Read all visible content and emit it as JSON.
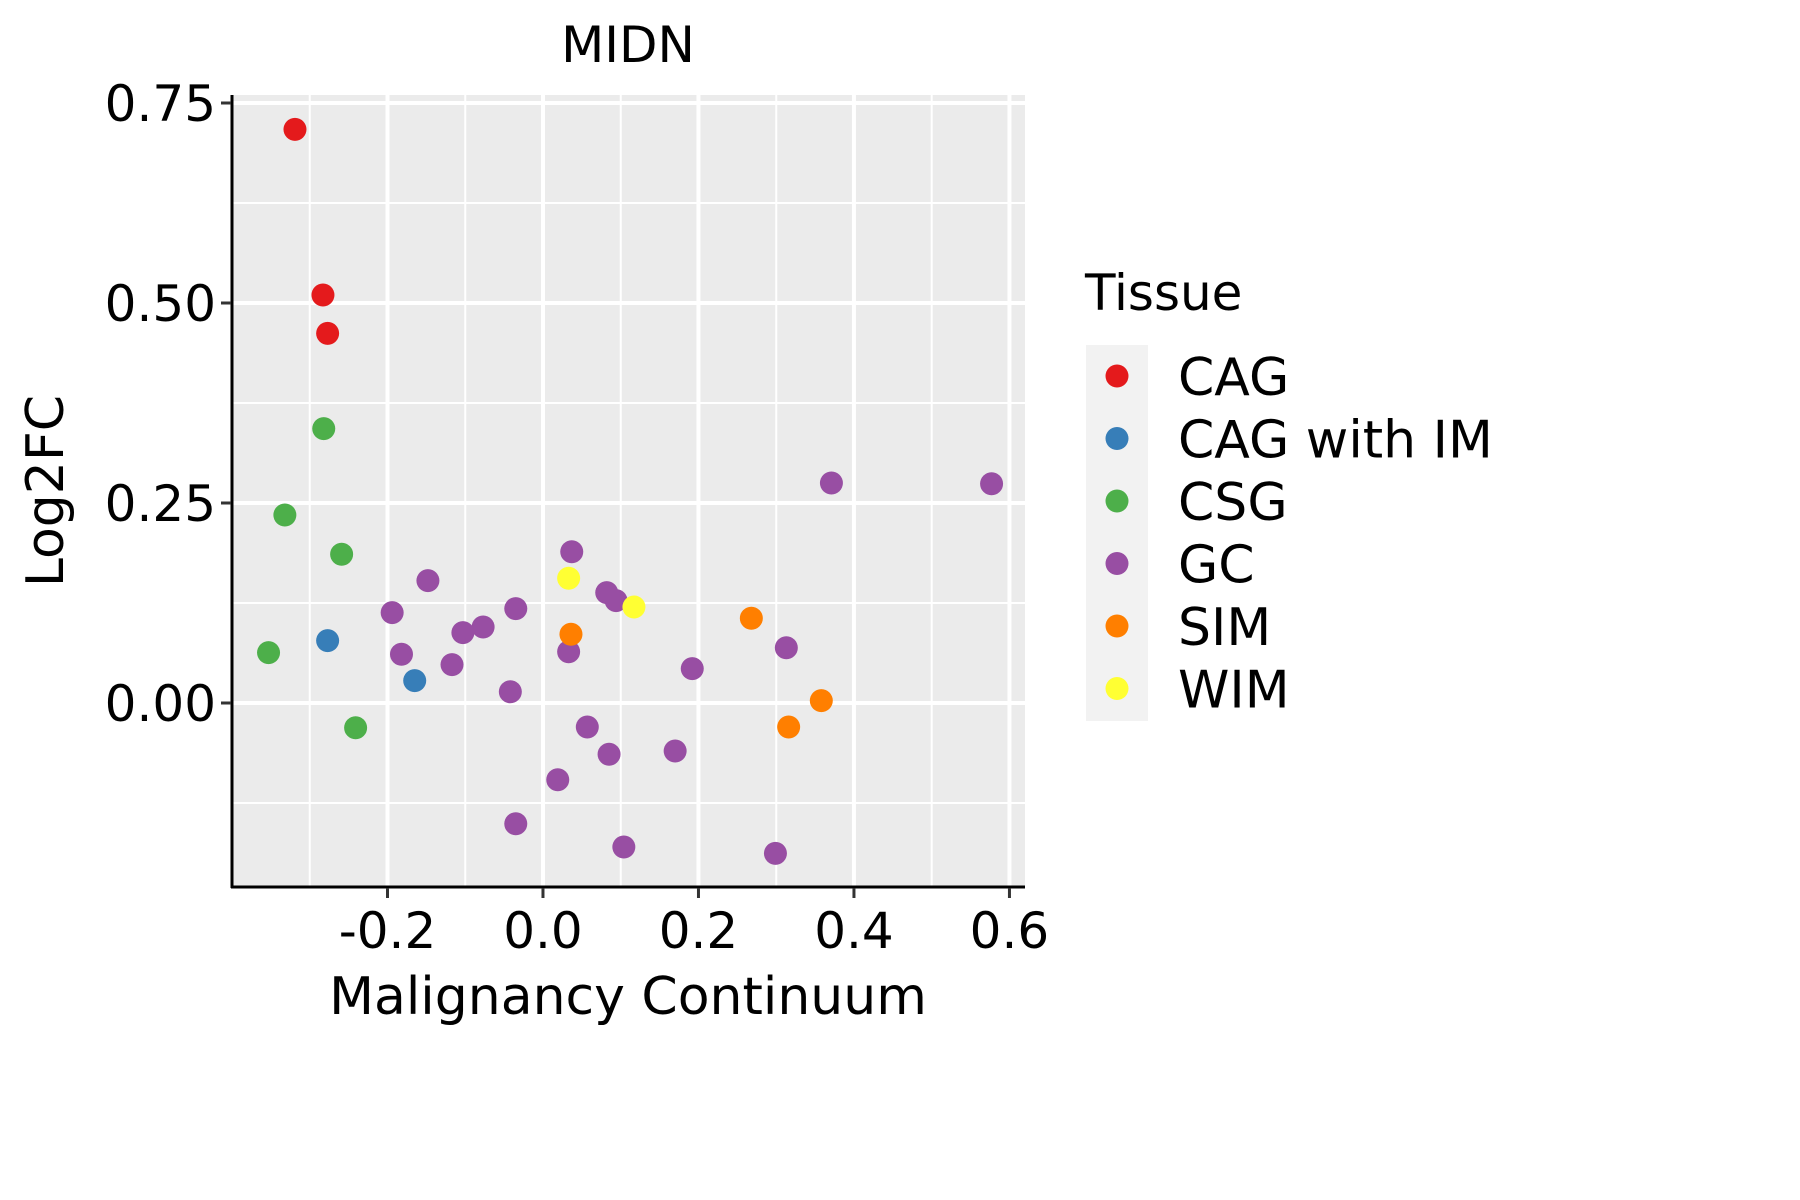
{
  "chart_data": {
    "type": "scatter",
    "title": "MIDN",
    "xlabel": "Malignancy Continuum",
    "ylabel": "Log2FC",
    "xlim": [
      -0.4,
      0.62
    ],
    "ylim": [
      -0.23,
      0.76
    ],
    "x_ticks": [
      -0.2,
      0.0,
      0.2,
      0.4,
      0.6
    ],
    "x_tick_labels": [
      "-0.2",
      "0.0",
      "0.2",
      "0.4",
      "0.6"
    ],
    "y_ticks": [
      0.0,
      0.25,
      0.5,
      0.75
    ],
    "y_tick_labels": [
      "0.00",
      "0.25",
      "0.50",
      "0.75"
    ],
    "grid": true,
    "legend": {
      "title": "Tissue",
      "position": "right",
      "entries": [
        {
          "label": "CAG",
          "color": "#E41A1C"
        },
        {
          "label": "CAG with IM",
          "color": "#377EB8"
        },
        {
          "label": "CSG",
          "color": "#4DAF4A"
        },
        {
          "label": "GC",
          "color": "#984EA3"
        },
        {
          "label": "SIM",
          "color": "#FF7F00"
        },
        {
          "label": "WIM",
          "color": "#FFFF33"
        }
      ]
    },
    "series": [
      {
        "name": "CAG",
        "color": "#E41A1C",
        "points": [
          [
            -0.319,
            0.717
          ],
          [
            -0.283,
            0.51
          ],
          [
            -0.277,
            0.462
          ]
        ]
      },
      {
        "name": "CAG with IM",
        "color": "#377EB8",
        "points": [
          [
            -0.277,
            0.078
          ],
          [
            -0.165,
            0.028
          ]
        ]
      },
      {
        "name": "CSG",
        "color": "#4DAF4A",
        "points": [
          [
            -0.282,
            0.343
          ],
          [
            -0.332,
            0.235
          ],
          [
            -0.259,
            0.186
          ],
          [
            -0.353,
            0.063
          ],
          [
            -0.241,
            -0.031
          ]
        ]
      },
      {
        "name": "GC",
        "color": "#984EA3",
        "points": [
          [
            0.037,
            0.189
          ],
          [
            -0.148,
            0.153
          ],
          [
            0.082,
            0.138
          ],
          [
            0.094,
            0.128
          ],
          [
            -0.194,
            0.113
          ],
          [
            -0.035,
            0.118
          ],
          [
            -0.077,
            0.095
          ],
          [
            -0.103,
            0.088
          ],
          [
            0.033,
            0.064
          ],
          [
            -0.182,
            0.061
          ],
          [
            -0.117,
            0.048
          ],
          [
            -0.042,
            0.014
          ],
          [
            0.192,
            0.043
          ],
          [
            0.313,
            0.069
          ],
          [
            0.371,
            0.275
          ],
          [
            0.577,
            0.274
          ],
          [
            0.057,
            -0.03
          ],
          [
            0.085,
            -0.064
          ],
          [
            0.17,
            -0.06
          ],
          [
            0.019,
            -0.096
          ],
          [
            -0.035,
            -0.151
          ],
          [
            0.104,
            -0.18
          ],
          [
            0.299,
            -0.188
          ]
        ]
      },
      {
        "name": "SIM",
        "color": "#FF7F00",
        "points": [
          [
            0.036,
            0.086
          ],
          [
            0.268,
            0.106
          ],
          [
            0.358,
            0.003
          ],
          [
            0.316,
            -0.03
          ]
        ]
      },
      {
        "name": "WIM",
        "color": "#FFFF33",
        "points": [
          [
            0.033,
            0.156
          ],
          [
            0.117,
            0.12
          ]
        ]
      }
    ]
  }
}
